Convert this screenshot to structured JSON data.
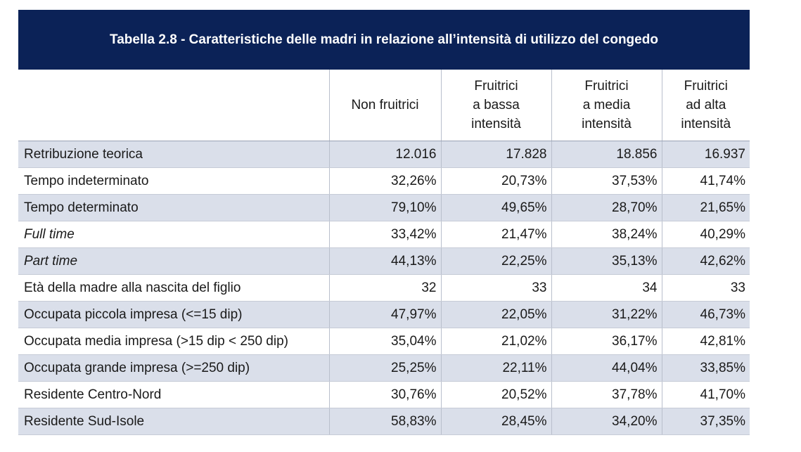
{
  "title": "Tabella 2.8 - Caratteristiche delle madri in relazione all’intensità di utilizzo del congedo",
  "headers": [
    "",
    "Non fruitrici",
    "Fruitrici\na bassa\nintensità",
    "Fruitrici\na media\nintensità",
    "Fruitrici\nad alta\nintensità"
  ],
  "header_lines": {
    "h1": [
      "Non fruitrici"
    ],
    "h2": [
      "Fruitrici",
      "a bassa",
      "intensità"
    ],
    "h3": [
      "Fruitrici",
      "a media",
      "intensità"
    ],
    "h4": [
      "Fruitrici",
      "ad alta",
      "intensità"
    ]
  },
  "rows": [
    {
      "label": "Retribuzione teorica",
      "italic": false,
      "values": [
        "12.016",
        "17.828",
        "18.856",
        "16.937"
      ]
    },
    {
      "label": "Tempo indeterminato",
      "italic": false,
      "values": [
        "32,26%",
        "20,73%",
        "37,53%",
        "41,74%"
      ]
    },
    {
      "label": "Tempo determinato",
      "italic": false,
      "values": [
        "79,10%",
        "49,65%",
        "28,70%",
        "21,65%"
      ]
    },
    {
      "label": "Full time",
      "italic": true,
      "values": [
        "33,42%",
        "21,47%",
        "38,24%",
        "40,29%"
      ]
    },
    {
      "label": "Part time",
      "italic": true,
      "values": [
        "44,13%",
        "22,25%",
        "35,13%",
        "42,62%"
      ]
    },
    {
      "label": "Età della madre alla nascita del figlio",
      "italic": false,
      "values": [
        "32",
        "33",
        "34",
        "33"
      ]
    },
    {
      "label": "Occupata piccola impresa (<=15 dip)",
      "italic": false,
      "values": [
        "47,97%",
        "22,05%",
        "31,22%",
        "46,73%"
      ]
    },
    {
      "label": "Occupata media impresa (>15 dip < 250 dip)",
      "italic": false,
      "values": [
        "35,04%",
        "21,02%",
        "36,17%",
        "42,81%"
      ]
    },
    {
      "label": "Occupata grande impresa (>=250 dip)",
      "italic": false,
      "values": [
        "25,25%",
        "22,11%",
        "44,04%",
        "33,85%"
      ]
    },
    {
      "label": "Residente Centro-Nord",
      "italic": false,
      "values": [
        "30,76%",
        "20,52%",
        "37,78%",
        "41,70%"
      ]
    },
    {
      "label": "Residente Sud-Isole",
      "italic": false,
      "values": [
        "58,83%",
        "28,45%",
        "34,20%",
        "37,35%"
      ]
    }
  ],
  "colors": {
    "title_bg": "#0b2257",
    "row_shade": "#dadfea"
  }
}
